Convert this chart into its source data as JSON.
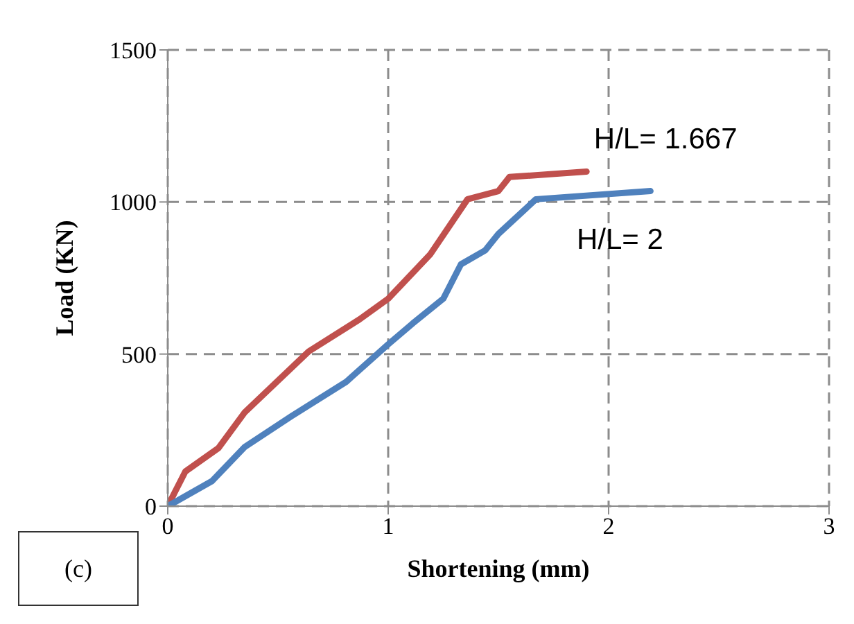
{
  "chart_data": {
    "type": "line",
    "xlabel": "Shortening (mm)",
    "ylabel": "Load (KN)",
    "xlim": [
      0,
      3
    ],
    "xticks": [
      0,
      1,
      2,
      3
    ],
    "ylim": [
      0,
      1500
    ],
    "yticks": [
      0,
      500,
      1000,
      1500
    ],
    "grid": true,
    "marker": "none",
    "line_style": "solid",
    "series": [
      {
        "name": "H/L= 1.667",
        "color": "#c0504d",
        "x": [
          0,
          0.08,
          0.23,
          0.35,
          0.64,
          0.87,
          1.0,
          1.19,
          1.36,
          1.5,
          1.55,
          1.9
        ],
        "values": [
          0,
          114,
          191,
          309,
          509,
          614,
          682,
          827,
          1009,
          1036,
          1082,
          1100
        ]
      },
      {
        "name": "H/L= 2",
        "color": "#4f81bd",
        "x": [
          0,
          0.2,
          0.35,
          0.56,
          0.81,
          1.0,
          1.11,
          1.25,
          1.33,
          1.44,
          1.5,
          1.67,
          2.19
        ],
        "values": [
          0,
          82,
          195,
          295,
          409,
          532,
          600,
          682,
          795,
          841,
          895,
          1009,
          1036
        ]
      }
    ],
    "annotations": [
      "(c)"
    ]
  }
}
